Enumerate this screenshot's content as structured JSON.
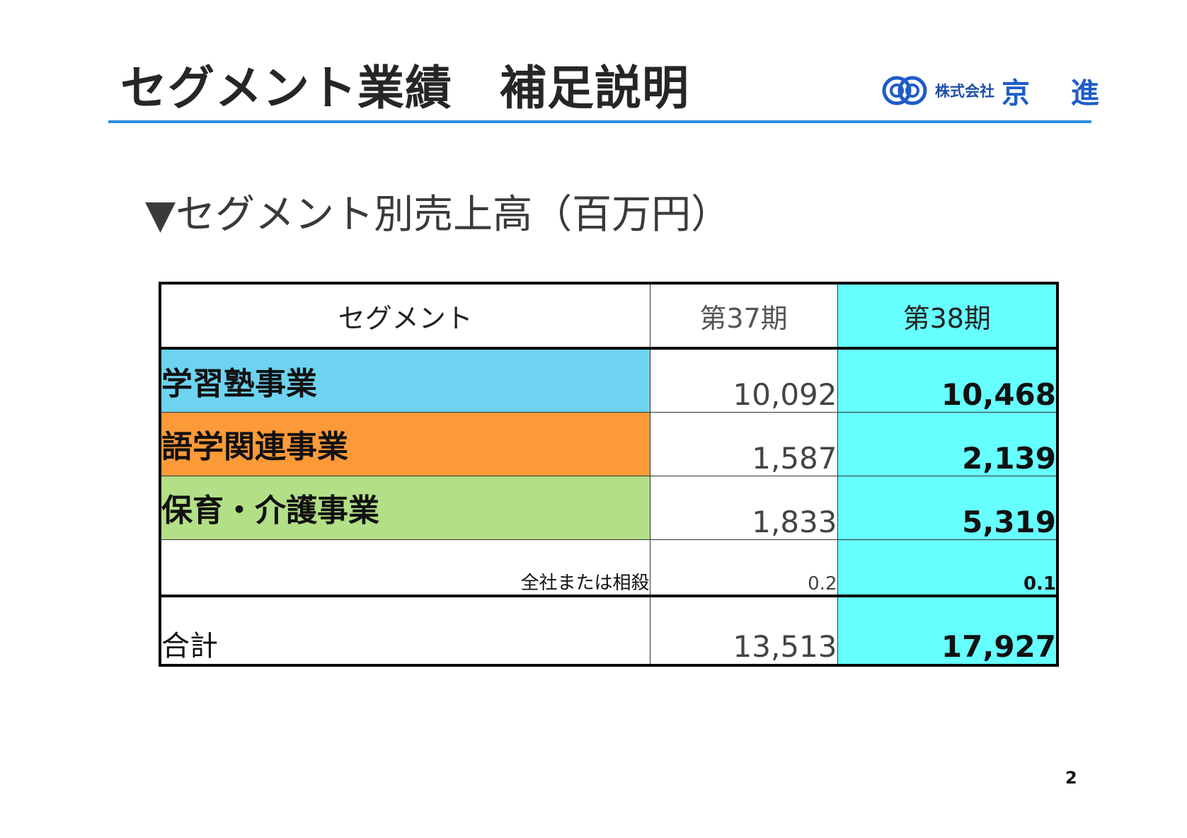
{
  "header": {
    "title": "セグメント業績　補足説明",
    "logo": {
      "company_prefix": "株式会社",
      "company_name": "京 進",
      "mark_color": "#1f5cc7"
    },
    "rule_color": "#2b8fe0"
  },
  "section": {
    "heading": "▼セグメント別売上高（百万円）"
  },
  "table": {
    "columns": {
      "segment": "セグメント",
      "period37": "第37期",
      "period38": "第38期"
    },
    "highlight_color": "#66ffff",
    "rows": [
      {
        "name": "学習塾事業",
        "p37": "10,092",
        "p38": "10,468",
        "color": "#6dd3f0"
      },
      {
        "name": "語学関連事業",
        "p37": "1,587",
        "p38": "2,139",
        "color": "#fd9a38"
      },
      {
        "name": "保育・介護事業",
        "p37": "1,833",
        "p38": "5,319",
        "color": "#b3df86"
      }
    ],
    "adjustment": {
      "label": "全社または相殺",
      "p37": "0.2",
      "p38": "0.1"
    },
    "total": {
      "label": "合計",
      "p37": "13,513",
      "p38": "17,927"
    }
  },
  "footer": {
    "page_number": "2"
  }
}
